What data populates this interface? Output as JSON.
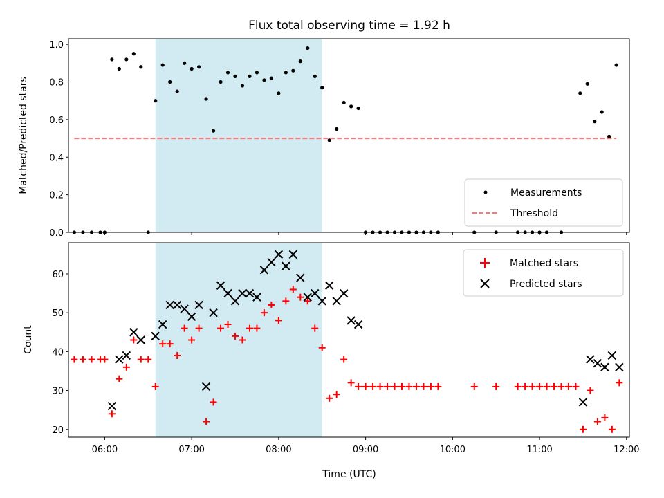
{
  "chart_data": [
    {
      "type": "scatter",
      "title": "Flux total observing time = 1.92 h",
      "xlabel": "",
      "ylabel": "Matched/Predicted stars",
      "ylim": [
        0,
        1.03
      ],
      "xlim": [
        "05:35",
        "12:02"
      ],
      "yticks": [
        "0.0",
        "0.2",
        "0.4",
        "0.6",
        "0.8",
        "1.0"
      ],
      "shaded_interval": [
        "06:35",
        "08:30"
      ],
      "shaded_color": "#add8e6",
      "legend_position": "lower right",
      "series": [
        {
          "name": "Measurements",
          "marker": "dot",
          "color": "#000000",
          "points": [
            [
              "05:39",
              0
            ],
            [
              "05:45",
              0
            ],
            [
              "05:51",
              0
            ],
            [
              "05:57",
              0
            ],
            [
              "06:00",
              0
            ],
            [
              "06:05",
              0.92
            ],
            [
              "06:10",
              0.87
            ],
            [
              "06:15",
              0.92
            ],
            [
              "06:20",
              0.95
            ],
            [
              "06:25",
              0.88
            ],
            [
              "06:30",
              0
            ],
            [
              "06:35",
              0.7
            ],
            [
              "06:40",
              0.89
            ],
            [
              "06:45",
              0.8
            ],
            [
              "06:50",
              0.75
            ],
            [
              "06:55",
              0.9
            ],
            [
              "07:00",
              0.87
            ],
            [
              "07:05",
              0.88
            ],
            [
              "07:10",
              0.71
            ],
            [
              "07:15",
              0.54
            ],
            [
              "07:20",
              0.8
            ],
            [
              "07:25",
              0.85
            ],
            [
              "07:30",
              0.83
            ],
            [
              "07:35",
              0.78
            ],
            [
              "07:40",
              0.83
            ],
            [
              "07:45",
              0.85
            ],
            [
              "07:50",
              0.81
            ],
            [
              "07:55",
              0.82
            ],
            [
              "08:00",
              0.74
            ],
            [
              "08:05",
              0.85
            ],
            [
              "08:10",
              0.86
            ],
            [
              "08:15",
              0.91
            ],
            [
              "08:20",
              0.98
            ],
            [
              "08:25",
              0.83
            ],
            [
              "08:30",
              0.77
            ],
            [
              "08:35",
              0.49
            ],
            [
              "08:40",
              0.55
            ],
            [
              "08:45",
              0.69
            ],
            [
              "08:50",
              0.67
            ],
            [
              "08:55",
              0.66
            ],
            [
              "09:00",
              0
            ],
            [
              "09:05",
              0
            ],
            [
              "09:10",
              0
            ],
            [
              "09:15",
              0
            ],
            [
              "09:20",
              0
            ],
            [
              "09:25",
              0
            ],
            [
              "09:30",
              0
            ],
            [
              "09:35",
              0
            ],
            [
              "09:40",
              0
            ],
            [
              "09:45",
              0
            ],
            [
              "09:50",
              0
            ],
            [
              "10:15",
              0
            ],
            [
              "10:30",
              0
            ],
            [
              "10:45",
              0
            ],
            [
              "10:50",
              0
            ],
            [
              "10:55",
              0
            ],
            [
              "11:00",
              0
            ],
            [
              "11:05",
              0
            ],
            [
              "11:15",
              0
            ],
            [
              "11:28",
              0.74
            ],
            [
              "11:33",
              0.79
            ],
            [
              "11:38",
              0.59
            ],
            [
              "11:43",
              0.64
            ],
            [
              "11:48",
              0.51
            ],
            [
              "11:53",
              0.89
            ]
          ]
        },
        {
          "name": "Threshold",
          "marker": "dashed-line",
          "color": "#ff7777",
          "points": [
            [
              "05:39",
              0.5
            ],
            [
              "11:53",
              0.5
            ]
          ]
        }
      ]
    },
    {
      "type": "scatter",
      "title": "",
      "xlabel": "Time (UTC)",
      "ylabel": "Count",
      "ylim": [
        18,
        68
      ],
      "xlim": [
        "05:35",
        "12:02"
      ],
      "yticks": [
        "20",
        "30",
        "40",
        "50",
        "60"
      ],
      "xticks": [
        "06:00",
        "07:00",
        "08:00",
        "09:00",
        "10:00",
        "11:00",
        "12:00"
      ],
      "shaded_interval": [
        "06:35",
        "08:30"
      ],
      "shaded_color": "#add8e6",
      "legend_position": "upper right",
      "series": [
        {
          "name": "Matched stars",
          "marker": "plus",
          "color": "#ff0000",
          "points": [
            [
              "05:39",
              38
            ],
            [
              "05:45",
              38
            ],
            [
              "05:51",
              38
            ],
            [
              "05:57",
              38
            ],
            [
              "06:00",
              38
            ],
            [
              "06:05",
              24
            ],
            [
              "06:10",
              33
            ],
            [
              "06:15",
              36
            ],
            [
              "06:20",
              43
            ],
            [
              "06:25",
              38
            ],
            [
              "06:30",
              38
            ],
            [
              "06:35",
              31
            ],
            [
              "06:40",
              42
            ],
            [
              "06:45",
              42
            ],
            [
              "06:50",
              39
            ],
            [
              "06:55",
              46
            ],
            [
              "07:00",
              43
            ],
            [
              "07:05",
              46
            ],
            [
              "07:10",
              22
            ],
            [
              "07:15",
              27
            ],
            [
              "07:20",
              46
            ],
            [
              "07:25",
              47
            ],
            [
              "07:30",
              44
            ],
            [
              "07:35",
              43
            ],
            [
              "07:40",
              46
            ],
            [
              "07:45",
              46
            ],
            [
              "07:50",
              50
            ],
            [
              "07:55",
              52
            ],
            [
              "08:00",
              48
            ],
            [
              "08:05",
              53
            ],
            [
              "08:10",
              56
            ],
            [
              "08:15",
              54
            ],
            [
              "08:20",
              53
            ],
            [
              "08:25",
              46
            ],
            [
              "08:30",
              41
            ],
            [
              "08:35",
              28
            ],
            [
              "08:40",
              29
            ],
            [
              "08:45",
              38
            ],
            [
              "08:50",
              32
            ],
            [
              "08:55",
              31
            ],
            [
              "09:00",
              31
            ],
            [
              "09:05",
              31
            ],
            [
              "09:10",
              31
            ],
            [
              "09:15",
              31
            ],
            [
              "09:20",
              31
            ],
            [
              "09:25",
              31
            ],
            [
              "09:30",
              31
            ],
            [
              "09:35",
              31
            ],
            [
              "09:40",
              31
            ],
            [
              "09:45",
              31
            ],
            [
              "09:50",
              31
            ],
            [
              "10:15",
              31
            ],
            [
              "10:30",
              31
            ],
            [
              "10:45",
              31
            ],
            [
              "10:50",
              31
            ],
            [
              "10:55",
              31
            ],
            [
              "11:00",
              31
            ],
            [
              "11:05",
              31
            ],
            [
              "11:10",
              31
            ],
            [
              "11:15",
              31
            ],
            [
              "11:20",
              31
            ],
            [
              "11:25",
              31
            ],
            [
              "11:30",
              20
            ],
            [
              "11:35",
              30
            ],
            [
              "11:40",
              22
            ],
            [
              "11:45",
              23
            ],
            [
              "11:50",
              20
            ],
            [
              "11:55",
              32
            ]
          ]
        },
        {
          "name": "Predicted stars",
          "marker": "x",
          "color": "#000000",
          "points": [
            [
              "06:05",
              26
            ],
            [
              "06:10",
              38
            ],
            [
              "06:15",
              39
            ],
            [
              "06:20",
              45
            ],
            [
              "06:25",
              43
            ],
            [
              "06:35",
              44
            ],
            [
              "06:40",
              47
            ],
            [
              "06:45",
              52
            ],
            [
              "06:50",
              52
            ],
            [
              "06:55",
              51
            ],
            [
              "07:00",
              49
            ],
            [
              "07:05",
              52
            ],
            [
              "07:10",
              31
            ],
            [
              "07:15",
              50
            ],
            [
              "07:20",
              57
            ],
            [
              "07:25",
              55
            ],
            [
              "07:30",
              53
            ],
            [
              "07:35",
              55
            ],
            [
              "07:40",
              55
            ],
            [
              "07:45",
              54
            ],
            [
              "07:50",
              61
            ],
            [
              "07:55",
              63
            ],
            [
              "08:00",
              65
            ],
            [
              "08:05",
              62
            ],
            [
              "08:10",
              65
            ],
            [
              "08:15",
              59
            ],
            [
              "08:20",
              54
            ],
            [
              "08:25",
              55
            ],
            [
              "08:30",
              53
            ],
            [
              "08:35",
              57
            ],
            [
              "08:40",
              53
            ],
            [
              "08:45",
              55
            ],
            [
              "08:50",
              48
            ],
            [
              "08:55",
              47
            ],
            [
              "11:30",
              27
            ],
            [
              "11:35",
              38
            ],
            [
              "11:40",
              37
            ],
            [
              "11:45",
              36
            ],
            [
              "11:50",
              39
            ],
            [
              "11:55",
              36
            ]
          ]
        }
      ]
    }
  ]
}
